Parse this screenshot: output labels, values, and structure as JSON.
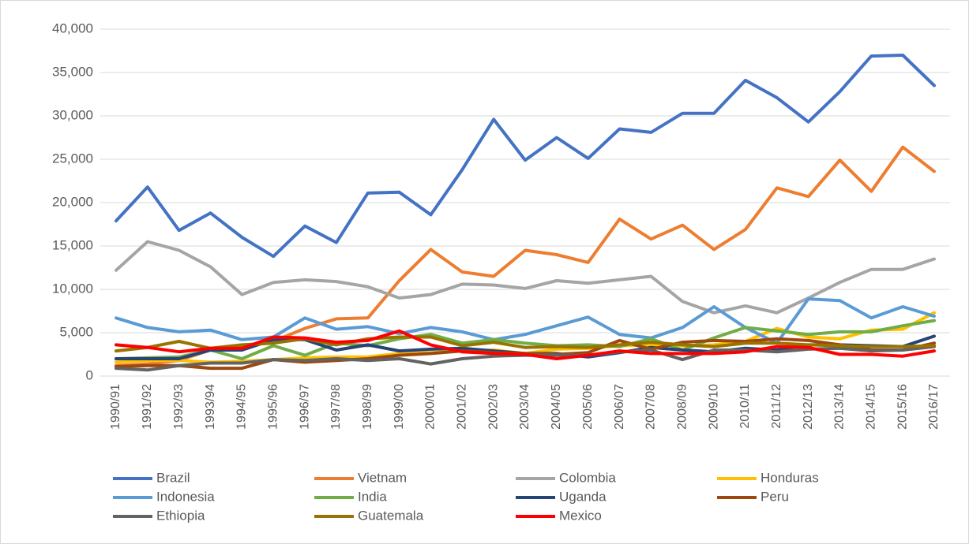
{
  "chart_data": {
    "type": "line",
    "categories": [
      "1990/91",
      "1991/92",
      "1992/93",
      "1993/94",
      "1994/95",
      "1995/96",
      "1996/97",
      "1997/98",
      "1998/99",
      "1999/00",
      "2000/01",
      "2001/02",
      "2002/03",
      "2003/04",
      "2004/05",
      "2005/06",
      "2006/07",
      "2007/08",
      "2008/09",
      "2009/10",
      "2010/11",
      "2011/12",
      "2012/13",
      "2013/14",
      "2014/15",
      "2015/16",
      "2016/17"
    ],
    "ylim": [
      0,
      40000
    ],
    "yticks": [
      0,
      {
        "value": 5000,
        "label": "5,000"
      },
      {
        "value": 10000,
        "label": "10,000"
      },
      {
        "value": 15000,
        "label": "15,000"
      },
      {
        "value": 20000,
        "label": "20,000"
      },
      {
        "value": 25000,
        "label": "25,000"
      },
      {
        "value": 30000,
        "label": "30,000"
      },
      {
        "value": 35000,
        "label": "35,000"
      },
      {
        "value": 40000,
        "label": "40,000"
      }
    ],
    "grid": true,
    "legend": "bottom",
    "series": [
      {
        "name": "Brazil",
        "color": "#4472c4",
        "values": [
          17900,
          21800,
          16800,
          18800,
          16000,
          13800,
          17300,
          15400,
          21100,
          21200,
          18600,
          23800,
          29600,
          24900,
          27500,
          25100,
          28500,
          28100,
          30300,
          30300,
          34100,
          32100,
          29300,
          32800,
          36900,
          37000,
          33500
        ]
      },
      {
        "name": "Vietnam",
        "color": "#ed7d31",
        "values": [
          1200,
          1400,
          1800,
          3000,
          3400,
          4000,
          5500,
          6600,
          6700,
          11000,
          14600,
          12000,
          11500,
          14500,
          14000,
          13100,
          18100,
          15800,
          17400,
          14600,
          16900,
          21700,
          20700,
          24900,
          21300,
          26400,
          23600
        ]
      },
      {
        "name": "Colombia",
        "color": "#a5a5a5",
        "values": [
          12200,
          15500,
          14500,
          12600,
          9400,
          10800,
          11100,
          10900,
          10300,
          9000,
          9400,
          10600,
          10500,
          10100,
          11000,
          10700,
          11100,
          11500,
          8600,
          7300,
          8100,
          7300,
          9000,
          10800,
          12300,
          12300,
          13500
        ]
      },
      {
        "name": "Honduras",
        "color": "#ffc000",
        "values": [
          1600,
          1800,
          1800,
          1600,
          1700,
          1900,
          2100,
          2200,
          2200,
          2600,
          2700,
          2900,
          3000,
          2600,
          3100,
          3200,
          3500,
          3600,
          3500,
          3600,
          4000,
          5500,
          4500,
          4300,
          5300,
          5400,
          7300
        ]
      },
      {
        "name": "Indonesia",
        "color": "#5b9bd5",
        "values": [
          6700,
          5600,
          5100,
          5300,
          4200,
          4500,
          6700,
          5400,
          5700,
          4900,
          5600,
          5100,
          4200,
          4800,
          5800,
          6800,
          4800,
          4400,
          5600,
          8000,
          5600,
          3800,
          8900,
          8700,
          6700,
          8000,
          6900
        ]
      },
      {
        "name": "India",
        "color": "#70ad47",
        "values": [
          2000,
          2100,
          2200,
          3000,
          2000,
          3500,
          2400,
          3800,
          3500,
          4300,
          4800,
          3800,
          4200,
          3800,
          3500,
          3600,
          3400,
          4300,
          3000,
          4400,
          5600,
          5200,
          4800,
          5100,
          5100,
          5800,
          6400
        ]
      },
      {
        "name": "Uganda",
        "color": "#264478",
        "values": [
          2000,
          2000,
          2000,
          3000,
          3000,
          4200,
          4200,
          3000,
          3600,
          2900,
          3100,
          3200,
          2900,
          2600,
          2600,
          2200,
          2700,
          3300,
          3000,
          2800,
          3200,
          3000,
          3600,
          3600,
          3500,
          3400,
          4600
        ]
      },
      {
        "name": "Peru",
        "color": "#9e480e",
        "values": [
          1100,
          1200,
          1200,
          900,
          900,
          1900,
          1600,
          1800,
          2000,
          2400,
          2600,
          2900,
          2700,
          2600,
          2500,
          2700,
          4100,
          3100,
          3900,
          4100,
          4000,
          4300,
          4100,
          3600,
          3000,
          3000,
          3800
        ]
      },
      {
        "name": "Ethiopia",
        "color": "#636363",
        "values": [
          900,
          700,
          1200,
          1500,
          1500,
          1900,
          1800,
          2000,
          1800,
          2000,
          1400,
          2000,
          2300,
          2400,
          2400,
          2400,
          2800,
          3000,
          1900,
          3000,
          3000,
          2800,
          3100,
          3200,
          2900,
          3000,
          3400
        ]
      },
      {
        "name": "Guatemala",
        "color": "#997300",
        "values": [
          2900,
          3300,
          4000,
          3200,
          3600,
          3800,
          4300,
          3600,
          4300,
          4500,
          4500,
          3500,
          3900,
          3300,
          3400,
          3300,
          3600,
          3900,
          3600,
          3400,
          3800,
          3800,
          3600,
          3500,
          3400,
          3400,
          3500
        ]
      },
      {
        "name": "Mexico",
        "color": "#ff0000",
        "values": [
          3600,
          3300,
          2800,
          3200,
          3200,
          4500,
          4400,
          3900,
          4100,
          5200,
          3600,
          2800,
          2600,
          2500,
          2000,
          2400,
          2900,
          2600,
          2600,
          2600,
          2800,
          3400,
          3300,
          2500,
          2500,
          2300,
          2900
        ]
      }
    ]
  }
}
